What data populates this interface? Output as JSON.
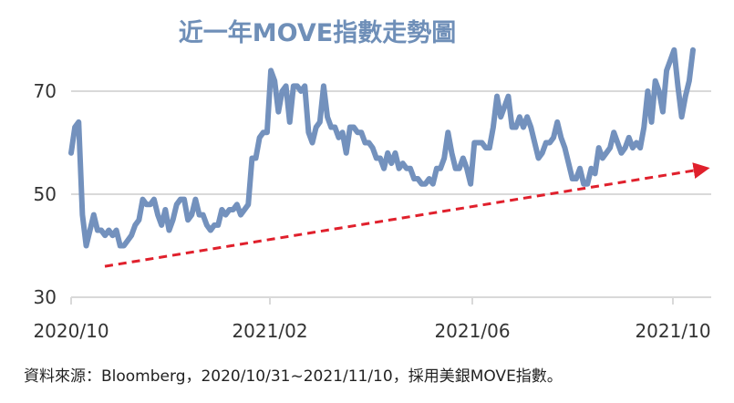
{
  "chart_data": {
    "type": "line",
    "title": "近一年MOVE指數走勢圖",
    "xlabel": "",
    "ylabel": "",
    "x_ticks": [
      "2020/10",
      "2021/02",
      "2021/06",
      "2021/10"
    ],
    "y_ticks": [
      30,
      50,
      70
    ],
    "ylim": [
      30,
      80
    ],
    "grid": "horizontal",
    "line_color": "#7391bd",
    "trend_color": "#e0202c",
    "trend_line": {
      "start": 36,
      "end": 55
    },
    "series": [
      {
        "values": [
          58,
          63,
          64,
          46,
          40,
          43,
          46,
          43,
          43,
          42,
          43,
          42,
          43,
          40,
          40,
          41,
          42,
          44,
          45,
          49,
          48,
          48,
          49,
          46,
          44,
          47,
          43,
          45,
          48,
          49,
          49,
          45,
          46,
          49,
          46,
          46,
          44,
          43,
          44,
          44,
          47,
          46,
          47,
          47,
          48,
          46,
          47,
          48,
          57,
          57,
          61,
          62,
          62,
          74,
          72,
          66,
          70,
          71,
          64,
          71,
          71,
          70,
          71,
          62,
          60,
          63,
          64,
          71,
          65,
          63,
          63,
          61,
          62,
          58,
          63,
          63,
          62,
          62,
          60,
          60,
          59,
          57,
          57,
          55,
          58,
          56,
          58,
          55,
          56,
          55,
          55,
          53,
          53,
          52,
          52,
          53,
          52,
          55,
          55,
          57,
          62,
          58,
          55,
          55,
          57,
          55,
          52,
          60,
          60,
          60,
          59,
          59,
          63,
          69,
          65,
          67,
          69,
          63,
          63,
          65,
          63,
          65,
          63,
          60,
          57,
          58,
          60,
          60,
          61,
          64,
          61,
          59,
          56,
          53,
          53,
          55,
          52,
          52,
          55,
          54,
          59,
          57,
          58,
          59,
          62,
          60,
          58,
          59,
          61,
          59,
          60,
          59,
          63,
          70,
          64,
          72,
          70,
          66,
          74,
          76,
          78,
          71,
          65,
          69,
          72,
          78
        ]
      }
    ],
    "source_text": "資料來源：Bloomberg，2020/10/31~2021/11/10，採用美銀MOVE指數。"
  }
}
